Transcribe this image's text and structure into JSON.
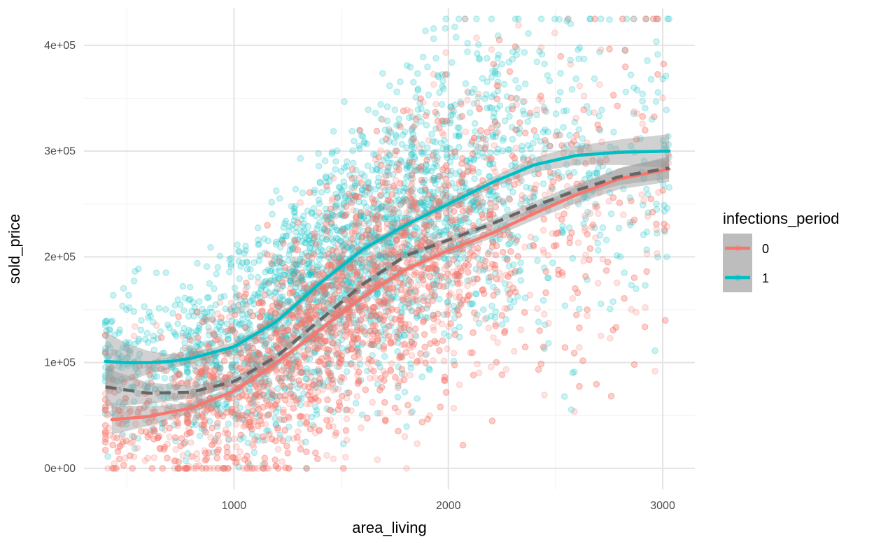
{
  "chart_data": {
    "type": "scatter",
    "xlabel": "area_living",
    "ylabel": "sold_price",
    "xlim": [
      300,
      3150
    ],
    "ylim": [
      -20000,
      435000
    ],
    "x_ticks": [
      1000,
      2000,
      3000
    ],
    "x_tick_labels": [
      "1000",
      "2000",
      "3000"
    ],
    "x_minor_ticks": [
      500,
      1500,
      2500
    ],
    "y_ticks": [
      0,
      100000,
      200000,
      300000,
      400000
    ],
    "y_tick_labels": [
      "0e+00",
      "1e+05",
      "2e+05",
      "3e+05",
      "4e+05"
    ],
    "y_minor_ticks": [
      50000,
      150000,
      250000,
      350000
    ],
    "grid": true,
    "legend": {
      "title": "infections_period",
      "position": "right"
    },
    "points": {
      "alpha": 0.2,
      "x_range": [
        400,
        3030
      ],
      "y_range": [
        0,
        425000
      ]
    },
    "series": [
      {
        "name": "0",
        "color": "#F8766D",
        "smooth_x": [
          430,
          600,
          800,
          1000,
          1200,
          1400,
          1600,
          1800,
          2000,
          2200,
          2400,
          2600,
          2800,
          3030
        ],
        "smooth_y": [
          46000,
          49000,
          57000,
          73000,
          100000,
          131000,
          162000,
          188000,
          206000,
          222000,
          241000,
          259000,
          274000,
          283000
        ],
        "ci_half_width": [
          14000,
          9000,
          5000,
          3500,
          3000,
          3000,
          3000,
          3000,
          3500,
          4500,
          6000,
          8000,
          10000,
          12000
        ]
      },
      {
        "name": "1",
        "color": "#00BFC4",
        "smooth_x": [
          400,
          500,
          600,
          700,
          800,
          1000,
          1200,
          1400,
          1600,
          1800,
          2000,
          2200,
          2400,
          2600,
          2800,
          3030
        ],
        "smooth_y": [
          101000,
          100000,
          100000,
          101000,
          104000,
          115000,
          139000,
          175000,
          207000,
          230000,
          250000,
          270000,
          287000,
          296000,
          299000,
          300000
        ],
        "ci_half_width": [
          28000,
          18000,
          11000,
          7000,
          5000,
          4000,
          4000,
          3500,
          3500,
          3500,
          4000,
          5000,
          7000,
          9000,
          12000,
          16000
        ]
      }
    ],
    "overall_smooth": {
      "color": "#666666",
      "dash": true,
      "x": [
        400,
        600,
        800,
        1000,
        1200,
        1400,
        1600,
        1800,
        2000,
        2200,
        2400,
        2600,
        2800,
        3030
      ],
      "y": [
        77000,
        71000,
        72000,
        82000,
        106000,
        140000,
        174000,
        201000,
        216000,
        231000,
        248000,
        263000,
        276000,
        284000
      ],
      "ci_half_width": [
        18000,
        10000,
        6000,
        4000,
        3000,
        2500,
        2500,
        2500,
        3000,
        3500,
        4500,
        6000,
        8000,
        10000
      ]
    }
  }
}
